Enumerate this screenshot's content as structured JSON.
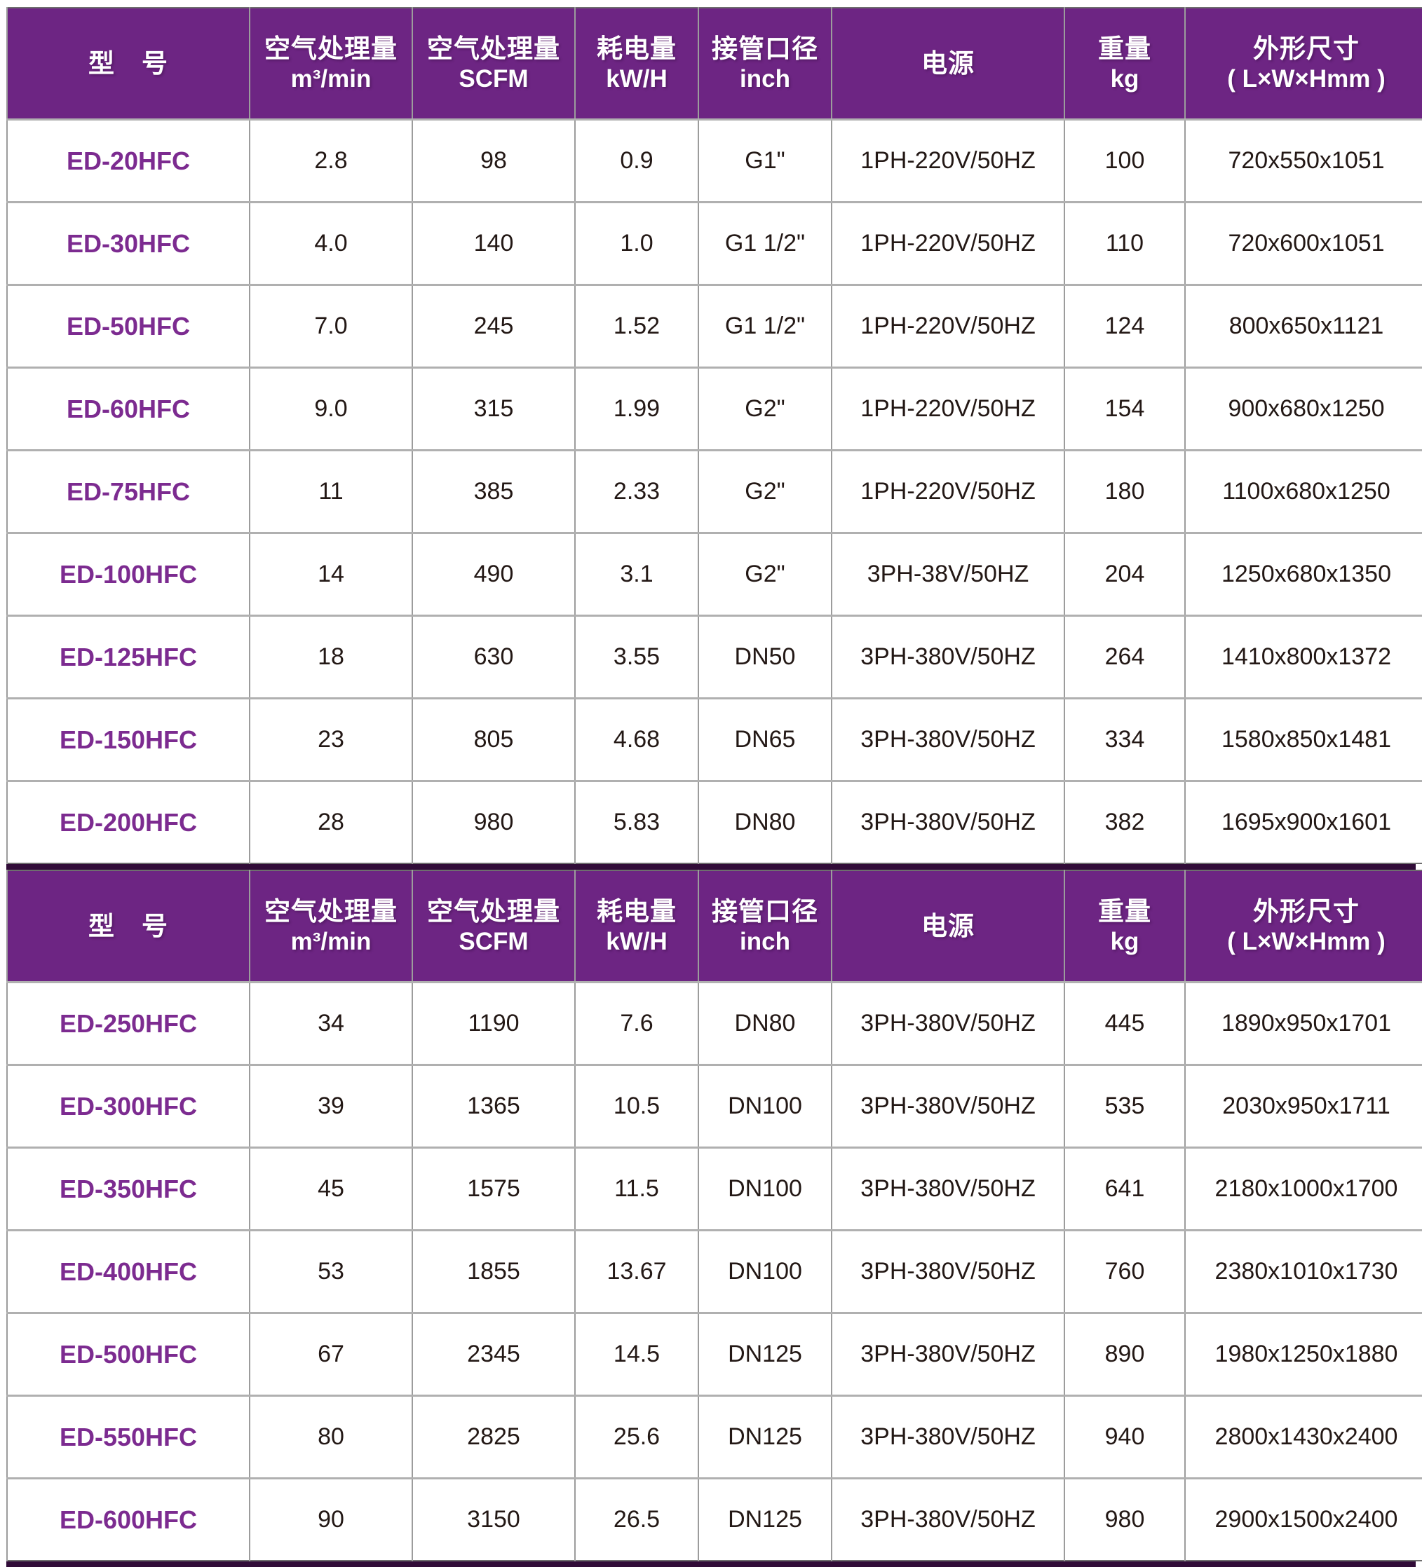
{
  "colors": {
    "header_bg": "#6D2583",
    "header_text": "#FFFFFF",
    "model_text": "#7C2B90",
    "body_text": "#231815",
    "grid_line": "#9C9C9C",
    "row_line": "#B0B0B0",
    "divider_bar": "#310C38"
  },
  "table": {
    "columns": [
      {
        "zh": "型　号",
        "sub": ""
      },
      {
        "zh": "空气处理量",
        "sub": "m³/min"
      },
      {
        "zh": "空气处理量",
        "sub": "SCFM"
      },
      {
        "zh": "耗电量",
        "sub": "kW/H"
      },
      {
        "zh": "接管口径",
        "sub": "inch"
      },
      {
        "zh": "电源",
        "sub": ""
      },
      {
        "zh": "重量",
        "sub": "kg"
      },
      {
        "zh": "外形尺寸",
        "sub": "( L×W×Hmm )"
      }
    ],
    "sections": [
      {
        "rows": [
          [
            "ED-20HFC",
            "2.8",
            "98",
            "0.9",
            "G1\"",
            "1PH-220V/50HZ",
            "100",
            "720x550x1051"
          ],
          [
            "ED-30HFC",
            "4.0",
            "140",
            "1.0",
            "G1 1/2\"",
            "1PH-220V/50HZ",
            "110",
            "720x600x1051"
          ],
          [
            "ED-50HFC",
            "7.0",
            "245",
            "1.52",
            "G1 1/2\"",
            "1PH-220V/50HZ",
            "124",
            "800x650x1121"
          ],
          [
            "ED-60HFC",
            "9.0",
            "315",
            "1.99",
            "G2\"",
            "1PH-220V/50HZ",
            "154",
            "900x680x1250"
          ],
          [
            "ED-75HFC",
            "11",
            "385",
            "2.33",
            "G2\"",
            "1PH-220V/50HZ",
            "180",
            "1100x680x1250"
          ],
          [
            "ED-100HFC",
            "14",
            "490",
            "3.1",
            "G2\"",
            "3PH-38V/50HZ",
            "204",
            "1250x680x1350"
          ],
          [
            "ED-125HFC",
            "18",
            "630",
            "3.55",
            "DN50",
            "3PH-380V/50HZ",
            "264",
            "1410x800x1372"
          ],
          [
            "ED-150HFC",
            "23",
            "805",
            "4.68",
            "DN65",
            "3PH-380V/50HZ",
            "334",
            "1580x850x1481"
          ],
          [
            "ED-200HFC",
            "28",
            "980",
            "5.83",
            "DN80",
            "3PH-380V/50HZ",
            "382",
            "1695x900x1601"
          ]
        ]
      },
      {
        "rows": [
          [
            "ED-250HFC",
            "34",
            "1190",
            "7.6",
            "DN80",
            "3PH-380V/50HZ",
            "445",
            "1890x950x1701"
          ],
          [
            "ED-300HFC",
            "39",
            "1365",
            "10.5",
            "DN100",
            "3PH-380V/50HZ",
            "535",
            "2030x950x1711"
          ],
          [
            "ED-350HFC",
            "45",
            "1575",
            "11.5",
            "DN100",
            "3PH-380V/50HZ",
            "641",
            "2180x1000x1700"
          ],
          [
            "ED-400HFC",
            "53",
            "1855",
            "13.67",
            "DN100",
            "3PH-380V/50HZ",
            "760",
            "2380x1010x1730"
          ],
          [
            "ED-500HFC",
            "67",
            "2345",
            "14.5",
            "DN125",
            "3PH-380V/50HZ",
            "890",
            "1980x1250x1880"
          ],
          [
            "ED-550HFC",
            "80",
            "2825",
            "25.6",
            "DN125",
            "3PH-380V/50HZ",
            "940",
            "2800x1430x2400"
          ],
          [
            "ED-600HFC",
            "90",
            "3150",
            "26.5",
            "DN125",
            "3PH-380V/50HZ",
            "980",
            "2900x1500x2400"
          ]
        ]
      }
    ]
  }
}
